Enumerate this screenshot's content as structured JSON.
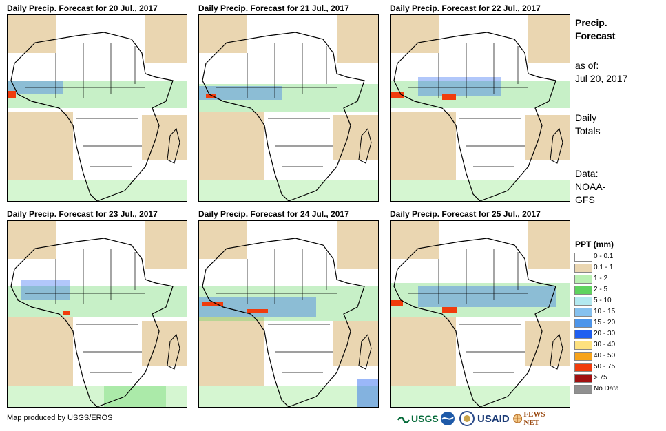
{
  "panels": [
    {
      "title": "Daily Precip. Forecast for 20 Jul., 2017"
    },
    {
      "title": "Daily Precip. Forecast for 21 Jul., 2017"
    },
    {
      "title": "Daily Precip. Forecast for 22 Jul., 2017"
    },
    {
      "title": "Daily Precip. Forecast for 23 Jul., 2017"
    },
    {
      "title": "Daily Precip. Forecast for 24 Jul., 2017"
    },
    {
      "title": "Daily Precip. Forecast for 25 Jul., 2017"
    }
  ],
  "sidebar": {
    "title_line1": "Precip.",
    "title_line2": "Forecast",
    "asof_label": "as of:",
    "asof_date": "Jul 20, 2017",
    "totals_line1": "Daily",
    "totals_line2": "Totals",
    "data_line1": "Data:",
    "data_line2": "NOAA-",
    "data_line3": "GFS"
  },
  "legend": {
    "title": "PPT (mm)",
    "items": [
      {
        "label": "0 - 0.1",
        "color": "#ffffff"
      },
      {
        "label": "0.1 - 1",
        "color": "#ead6b1"
      },
      {
        "label": "1 - 2",
        "color": "#b9f0b2"
      },
      {
        "label": "2 - 5",
        "color": "#5fd35f"
      },
      {
        "label": "5 - 10",
        "color": "#b3e9f0"
      },
      {
        "label": "10 - 15",
        "color": "#86c1ef"
      },
      {
        "label": "15 - 20",
        "color": "#4d95ea"
      },
      {
        "label": "20 - 30",
        "color": "#1f5ff0"
      },
      {
        "label": "30 - 40",
        "color": "#fde17f"
      },
      {
        "label": "40 - 50",
        "color": "#f7a31b"
      },
      {
        "label": "50 - 75",
        "color": "#f03c0d"
      },
      {
        "label": "> 75",
        "color": "#a01010"
      },
      {
        "label": "No Data",
        "color": "#909090"
      }
    ]
  },
  "footer": {
    "credit": "Map produced by USGS/EROS",
    "logos": {
      "usgs": "USGS",
      "usaid": "USAID",
      "fewsnet": "FEWS NET"
    }
  }
}
